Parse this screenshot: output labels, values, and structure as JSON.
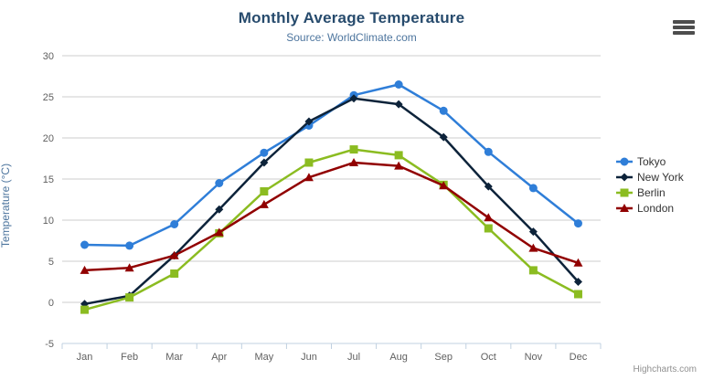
{
  "header": {
    "title": "Monthly Average Temperature",
    "subtitle": "Source: WorldClimate.com"
  },
  "export_menu": {
    "icon": "hamburger-menu-icon"
  },
  "credits": {
    "label": "Highcharts.com"
  },
  "colors": {
    "title": "#274b6d",
    "subtitle": "#4d759e",
    "axis_title": "#4d759e",
    "axis_label": "#606060",
    "grid_line": "#cccccc",
    "axis_line": "#c0d0e0",
    "legend_text": "#333333",
    "credits_text": "#909090",
    "menu_icon": "#4d4d4d"
  },
  "chart_data": {
    "type": "line",
    "title": "Monthly Average Temperature",
    "subtitle": "Source: WorldClimate.com",
    "categories": [
      "Jan",
      "Feb",
      "Mar",
      "Apr",
      "May",
      "Jun",
      "Jul",
      "Aug",
      "Sep",
      "Oct",
      "Nov",
      "Dec"
    ],
    "series": [
      {
        "name": "Tokyo",
        "color": "#2f7ed8",
        "marker": "circle",
        "values": [
          7.0,
          6.9,
          9.5,
          14.5,
          18.2,
          21.5,
          25.2,
          26.5,
          23.3,
          18.3,
          13.9,
          9.6
        ]
      },
      {
        "name": "New York",
        "color": "#0d233a",
        "marker": "diamond",
        "values": [
          -0.2,
          0.8,
          5.7,
          11.3,
          17.0,
          22.0,
          24.8,
          24.1,
          20.1,
          14.1,
          8.6,
          2.5
        ]
      },
      {
        "name": "Berlin",
        "color": "#8bbc21",
        "marker": "square",
        "values": [
          -0.9,
          0.6,
          3.5,
          8.4,
          13.5,
          17.0,
          18.6,
          17.9,
          14.3,
          9.0,
          3.9,
          1.0
        ]
      },
      {
        "name": "London",
        "color": "#910000",
        "marker": "triangle",
        "values": [
          3.9,
          4.2,
          5.7,
          8.5,
          11.9,
          15.2,
          17.0,
          16.6,
          14.2,
          10.3,
          6.6,
          4.8
        ]
      }
    ],
    "xlabel": "",
    "ylabel": "Temperature (°C)",
    "ylim": [
      -5,
      30
    ],
    "ytick_step": 5,
    "grid": true,
    "legend_position": "right"
  }
}
